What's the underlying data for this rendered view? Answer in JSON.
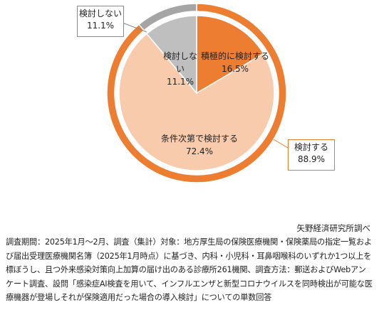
{
  "chart_data": {
    "type": "pie",
    "categories": [
      "積極的に検討する",
      "条件次第で検討する",
      "検討しない"
    ],
    "values": [
      16.5,
      72.4,
      11.1
    ],
    "value_labels": [
      "16.5%",
      "72.4%",
      "11.1%"
    ],
    "colors": [
      "#ED7D31",
      "#F8CBAD",
      "#BFBFBF"
    ],
    "outer_ring": {
      "categories": [
        "検討する",
        "検討しない"
      ],
      "values": [
        88.9,
        11.1
      ],
      "value_labels": [
        "88.9%",
        "11.1%"
      ],
      "colors": [
        "#ED7D31",
        "#A5A5A5"
      ]
    },
    "legend": "none",
    "grid": false
  },
  "source": "矢野経済研究所調べ",
  "footnote": "調査期間：2025年1月～2月、調査（集計）対象：地方厚生局の保険医療機関・保険薬局の指定一覧および届出受理医療機関名簿（2025年1月時点）に基づき、内科・小児科・耳鼻咽喉科のいずれか1つ以上を標ぼうし、且つ外来感染対策向上加算の届け出のある診療所261機関、調査方法：郵送およびWebアンケート調査、設問「感染症AI検査を用いて、インフルエンザと新型コロナウイルスを同時検出が可能な医療機器が登場しそれが保険適用だった場合の導入検討」についての単数回答"
}
